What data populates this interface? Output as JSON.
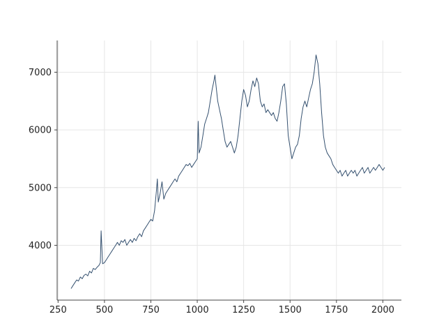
{
  "chart_data": {
    "type": "line",
    "title": "",
    "xlabel": "",
    "ylabel": "",
    "xlim": [
      245,
      2100
    ],
    "ylim": [
      3050,
      7550
    ],
    "xticks": [
      250,
      500,
      750,
      1000,
      1250,
      1500,
      1750,
      2000
    ],
    "xtick_labels": [
      "250",
      "500",
      "750",
      "1000",
      "1250",
      "1500",
      "1750",
      "2000"
    ],
    "yticks": [
      4000,
      5000,
      6000,
      7000
    ],
    "ytick_labels": [
      "4000",
      "5000",
      "6000",
      "7000"
    ],
    "grid": true,
    "legend": "none",
    "colors": {
      "line": "#34506f",
      "grid": "#e6e6e6",
      "spine": "#444444",
      "text": "#222222"
    },
    "series": [
      {
        "x": [
          320,
          330,
          340,
          350,
          360,
          370,
          380,
          390,
          400,
          410,
          420,
          430,
          440,
          450,
          460,
          470,
          478,
          482,
          490,
          500,
          510,
          520,
          530,
          540,
          550,
          560,
          570,
          580,
          590,
          600,
          610,
          620,
          630,
          640,
          650,
          660,
          670,
          680,
          690,
          700,
          710,
          720,
          730,
          740,
          750,
          760,
          770,
          780,
          785,
          790,
          800,
          810,
          820,
          830,
          840,
          850,
          860,
          870,
          880,
          890,
          900,
          910,
          920,
          930,
          940,
          950,
          960,
          970,
          980,
          990,
          1000,
          1005,
          1010,
          1020,
          1030,
          1040,
          1050,
          1060,
          1070,
          1080,
          1090,
          1095,
          1100,
          1110,
          1120,
          1130,
          1140,
          1150,
          1160,
          1170,
          1180,
          1190,
          1200,
          1210,
          1220,
          1230,
          1240,
          1250,
          1260,
          1270,
          1280,
          1290,
          1300,
          1310,
          1320,
          1330,
          1340,
          1350,
          1360,
          1370,
          1380,
          1390,
          1400,
          1410,
          1420,
          1430,
          1440,
          1450,
          1460,
          1470,
          1480,
          1490,
          1500,
          1510,
          1520,
          1530,
          1540,
          1550,
          1560,
          1570,
          1580,
          1590,
          1600,
          1610,
          1620,
          1630,
          1640,
          1650,
          1660,
          1670,
          1680,
          1690,
          1700,
          1710,
          1720,
          1730,
          1740,
          1750,
          1760,
          1770,
          1780,
          1790,
          1800,
          1810,
          1820,
          1830,
          1840,
          1850,
          1860,
          1870,
          1880,
          1890,
          1900,
          1910,
          1920,
          1930,
          1940,
          1950,
          1960,
          1970,
          1980,
          1990,
          2000,
          2010
        ],
        "y": [
          3250,
          3300,
          3350,
          3400,
          3380,
          3450,
          3420,
          3480,
          3500,
          3470,
          3550,
          3520,
          3600,
          3580,
          3620,
          3650,
          3700,
          4250,
          3680,
          3700,
          3750,
          3800,
          3850,
          3900,
          3950,
          4000,
          4050,
          4000,
          4080,
          4050,
          4100,
          4000,
          4050,
          4100,
          4050,
          4120,
          4080,
          4150,
          4200,
          4150,
          4250,
          4300,
          4350,
          4400,
          4450,
          4420,
          4600,
          4950,
          5150,
          4750,
          4900,
          5100,
          4800,
          4900,
          4950,
          5000,
          5050,
          5100,
          5150,
          5100,
          5200,
          5250,
          5300,
          5350,
          5400,
          5380,
          5420,
          5350,
          5400,
          5450,
          5500,
          6150,
          5600,
          5700,
          5900,
          6100,
          6200,
          6300,
          6500,
          6700,
          6850,
          6950,
          6800,
          6500,
          6350,
          6200,
          6000,
          5800,
          5700,
          5750,
          5800,
          5700,
          5600,
          5700,
          5900,
          6200,
          6500,
          6700,
          6600,
          6400,
          6500,
          6700,
          6850,
          6750,
          6900,
          6800,
          6500,
          6400,
          6450,
          6300,
          6350,
          6300,
          6250,
          6300,
          6200,
          6150,
          6300,
          6500,
          6750,
          6800,
          6450,
          5900,
          5700,
          5500,
          5600,
          5700,
          5750,
          5900,
          6200,
          6400,
          6500,
          6400,
          6550,
          6700,
          6800,
          7000,
          7300,
          7150,
          6800,
          6300,
          5900,
          5700,
          5600,
          5550,
          5500,
          5400,
          5350,
          5300,
          5250,
          5300,
          5200,
          5250,
          5300,
          5200,
          5250,
          5300,
          5250,
          5300,
          5200,
          5250,
          5300,
          5350,
          5250,
          5300,
          5350,
          5250,
          5300,
          5350,
          5300,
          5350,
          5400,
          5350,
          5300,
          5350
        ]
      }
    ]
  }
}
